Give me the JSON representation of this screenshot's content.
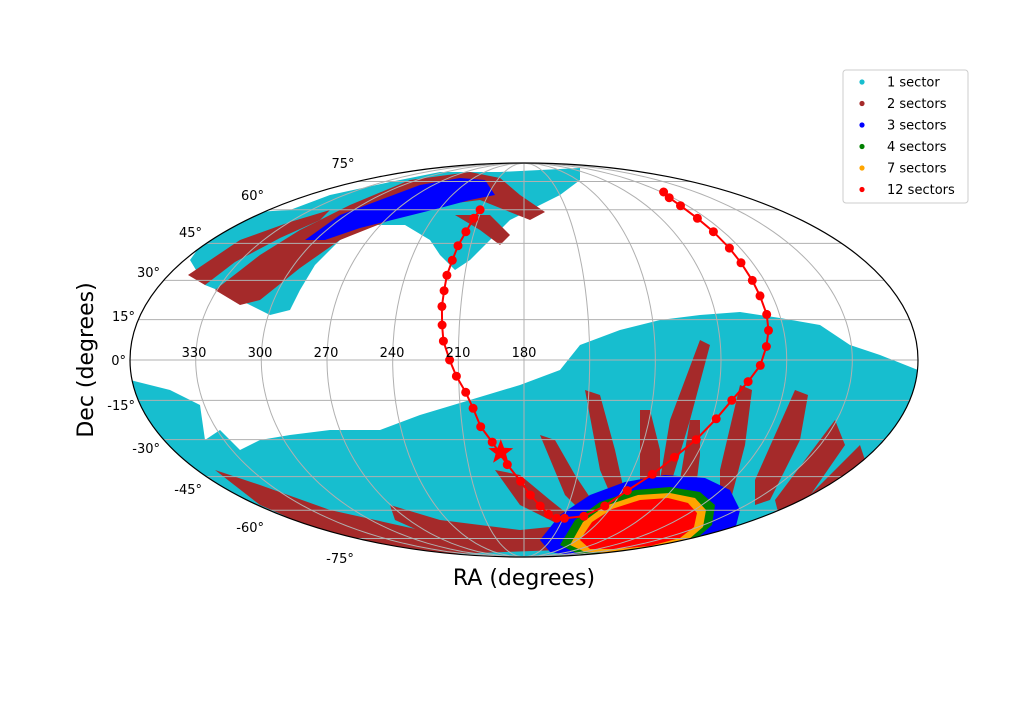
{
  "chart_data": {
    "type": "scatter",
    "projection": "mollweide",
    "title": "",
    "xlabel": "RA (degrees)",
    "ylabel": "Dec (degrees)",
    "grid": true,
    "legend_position": "top-right",
    "ra_tick_labels": [
      "330",
      "300",
      "270",
      "240",
      "210",
      "180"
    ],
    "dec_tick_labels": [
      "75°",
      "60°",
      "45°",
      "30°",
      "15°",
      "0°",
      "-15°",
      "-30°",
      "-45°",
      "-60°",
      "-75°"
    ],
    "series": [
      {
        "name": "1 sector",
        "color": "#17becf"
      },
      {
        "name": "2 sectors",
        "color": "#a52a2a"
      },
      {
        "name": "3 sectors",
        "color": "#0000ff"
      },
      {
        "name": "4 sectors",
        "color": "#008000"
      },
      {
        "name": "7 sectors",
        "color": "#ffa500"
      },
      {
        "name": "12 sectors",
        "color": "#ff0000"
      }
    ],
    "ecliptic_path": {
      "color": "#ff0000",
      "points": [
        [
          -31,
          60
        ],
        [
          -33,
          56
        ],
        [
          -35,
          50
        ],
        [
          -37,
          44
        ],
        [
          -38,
          38
        ],
        [
          -39,
          32
        ],
        [
          -39,
          26
        ],
        [
          -39,
          20
        ],
        [
          -38,
          13
        ],
        [
          -37,
          7
        ],
        [
          -34,
          0
        ],
        [
          -31,
          -6
        ],
        [
          -27,
          -12
        ],
        [
          -24,
          -18
        ],
        [
          -21,
          -25
        ],
        [
          -16,
          -31
        ],
        [
          -9,
          -40
        ],
        [
          -2,
          -47
        ],
        [
          4,
          -53
        ],
        [
          11,
          -58
        ],
        [
          18,
          -62
        ],
        [
          25,
          -64
        ],
        [
          31,
          -64
        ],
        [
          45,
          -63
        ],
        [
          55,
          -58
        ],
        [
          63,
          -51
        ],
        [
          72,
          -44
        ],
        [
          79,
          -37
        ],
        [
          86,
          -30
        ],
        [
          92,
          -22
        ],
        [
          97,
          -15
        ],
        [
          103,
          -8
        ],
        [
          108,
          -2
        ],
        [
          111,
          5
        ],
        [
          113,
          11
        ],
        [
          114,
          17
        ],
        [
          114,
          24
        ],
        [
          114,
          30
        ],
        [
          114,
          37
        ],
        [
          114,
          43
        ],
        [
          114,
          50
        ],
        [
          114,
          56
        ],
        [
          115,
          62
        ],
        [
          117,
          66
        ],
        [
          122,
          69
        ]
      ],
      "star": [
        -12,
        -35
      ]
    }
  }
}
